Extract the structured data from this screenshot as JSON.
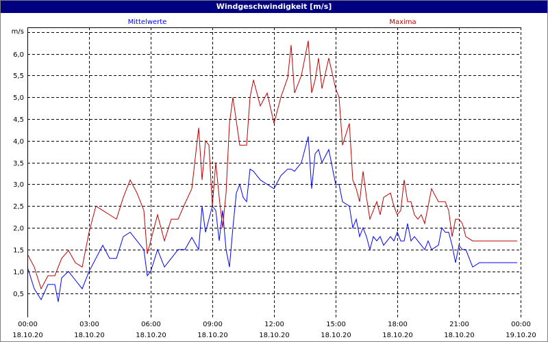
{
  "chart_data": {
    "type": "line",
    "title": "Windgeschwindigkeit [m/s]",
    "ylabel": "m/s",
    "xlabel": "",
    "ylim": [
      0,
      6.6
    ],
    "xlim_minutes": [
      0,
      1440
    ],
    "grid": true,
    "y_ticks": [
      {
        "value": 0.5,
        "label": "0,5"
      },
      {
        "value": 1.0,
        "label": "1,0"
      },
      {
        "value": 1.5,
        "label": "1,5"
      },
      {
        "value": 2.0,
        "label": "2,0"
      },
      {
        "value": 2.5,
        "label": "2,5"
      },
      {
        "value": 3.0,
        "label": "3,0"
      },
      {
        "value": 3.5,
        "label": "3,5"
      },
      {
        "value": 4.0,
        "label": "4,0"
      },
      {
        "value": 4.5,
        "label": "4,5"
      },
      {
        "value": 5.0,
        "label": "5,0"
      },
      {
        "value": 5.5,
        "label": "5,5"
      },
      {
        "value": 6.0,
        "label": "6,0"
      }
    ],
    "x_ticks": [
      {
        "minutes": 0,
        "time": "00:00",
        "date": "18.10.20"
      },
      {
        "minutes": 180,
        "time": "03:00",
        "date": "18.10.20"
      },
      {
        "minutes": 360,
        "time": "06:00",
        "date": "18.10.20"
      },
      {
        "minutes": 540,
        "time": "09:00",
        "date": "18.10.20"
      },
      {
        "minutes": 720,
        "time": "12:00",
        "date": "18.10.20"
      },
      {
        "minutes": 900,
        "time": "15:00",
        "date": "18.10.20"
      },
      {
        "minutes": 1080,
        "time": "18:00",
        "date": "18.10.20"
      },
      {
        "minutes": 1260,
        "time": "21:00",
        "date": "18.10.20"
      },
      {
        "minutes": 1440,
        "time": "00:00",
        "date": "19.10.20"
      }
    ],
    "series": [
      {
        "name": "Mittelwerte",
        "color": "#0000ff",
        "x_minutes": [
          0,
          20,
          40,
          60,
          80,
          90,
          100,
          120,
          140,
          160,
          180,
          200,
          220,
          240,
          260,
          280,
          300,
          320,
          340,
          350,
          360,
          380,
          400,
          420,
          440,
          460,
          480,
          500,
          510,
          520,
          540,
          550,
          560,
          570,
          580,
          590,
          600,
          610,
          620,
          630,
          640,
          650,
          660,
          680,
          700,
          720,
          740,
          760,
          770,
          780,
          800,
          820,
          830,
          840,
          850,
          860,
          880,
          900,
          910,
          920,
          940,
          950,
          960,
          970,
          980,
          990,
          1000,
          1010,
          1020,
          1030,
          1040,
          1060,
          1070,
          1080,
          1090,
          1100,
          1110,
          1120,
          1130,
          1140,
          1150,
          1160,
          1170,
          1180,
          1200,
          1210,
          1220,
          1230,
          1240,
          1250,
          1260,
          1270,
          1280,
          1300,
          1320,
          1330,
          1340,
          1350,
          1360,
          1380,
          1390,
          1400,
          1410,
          1420,
          1430
        ],
        "values": [
          1.1,
          0.6,
          0.35,
          0.7,
          0.7,
          0.3,
          0.85,
          1.0,
          0.8,
          0.6,
          1.0,
          1.3,
          1.6,
          1.3,
          1.3,
          1.8,
          1.9,
          1.7,
          1.5,
          0.9,
          1.0,
          1.5,
          1.1,
          1.3,
          1.5,
          1.5,
          1.78,
          1.5,
          2.5,
          1.9,
          2.5,
          2.4,
          1.7,
          2.4,
          1.5,
          1.1,
          2.0,
          2.8,
          3.0,
          2.7,
          2.6,
          3.35,
          3.3,
          3.1,
          3.0,
          2.9,
          3.2,
          3.35,
          3.35,
          3.3,
          3.5,
          4.1,
          2.9,
          3.7,
          3.8,
          3.5,
          3.8,
          3.0,
          3.0,
          2.6,
          2.5,
          2.0,
          2.2,
          1.8,
          2.0,
          1.8,
          1.5,
          1.8,
          1.7,
          1.8,
          1.6,
          1.8,
          1.7,
          1.9,
          1.7,
          1.7,
          2.1,
          1.7,
          1.8,
          1.7,
          1.6,
          1.5,
          1.7,
          1.5,
          1.6,
          2.0,
          1.9,
          1.9,
          1.6,
          1.2,
          1.6,
          1.5,
          1.5,
          1.1,
          1.2,
          1.2,
          1.2,
          1.2,
          1.2,
          1.2,
          1.2,
          1.2,
          1.2,
          1.2,
          1.2
        ]
      },
      {
        "name": "Maxima",
        "color": "#c00000",
        "x_minutes": [
          0,
          20,
          40,
          60,
          80,
          100,
          120,
          140,
          160,
          180,
          200,
          220,
          240,
          260,
          280,
          300,
          320,
          340,
          350,
          360,
          380,
          400,
          420,
          440,
          460,
          480,
          500,
          510,
          520,
          530,
          540,
          550,
          560,
          570,
          580,
          590,
          600,
          620,
          640,
          650,
          660,
          680,
          700,
          720,
          740,
          760,
          770,
          780,
          800,
          820,
          830,
          840,
          850,
          860,
          880,
          900,
          910,
          920,
          940,
          950,
          960,
          970,
          980,
          990,
          1000,
          1010,
          1020,
          1030,
          1040,
          1060,
          1070,
          1080,
          1090,
          1100,
          1110,
          1120,
          1130,
          1140,
          1150,
          1160,
          1170,
          1180,
          1200,
          1210,
          1220,
          1230,
          1240,
          1250,
          1260,
          1270,
          1280,
          1300,
          1320,
          1330,
          1340,
          1350,
          1360,
          1380,
          1390,
          1400,
          1410,
          1420,
          1430
        ],
        "values": [
          1.4,
          1.1,
          0.6,
          0.9,
          0.9,
          1.3,
          1.48,
          1.2,
          1.1,
          1.9,
          2.5,
          2.4,
          2.3,
          2.2,
          2.7,
          3.1,
          2.8,
          2.4,
          1.4,
          1.7,
          2.3,
          1.7,
          2.2,
          2.2,
          2.56,
          2.9,
          4.3,
          3.1,
          4.0,
          3.9,
          2.5,
          3.5,
          2.7,
          2.0,
          2.8,
          4.4,
          5.0,
          3.9,
          3.9,
          5.0,
          5.4,
          4.8,
          5.1,
          4.4,
          5.0,
          5.45,
          6.2,
          5.1,
          5.5,
          6.3,
          5.1,
          5.4,
          5.9,
          5.2,
          5.9,
          5.2,
          5.0,
          3.9,
          4.4,
          3.1,
          2.9,
          2.6,
          3.3,
          2.7,
          2.2,
          2.4,
          2.6,
          2.3,
          2.7,
          2.8,
          2.5,
          2.3,
          2.4,
          3.1,
          2.6,
          2.6,
          2.3,
          2.2,
          2.3,
          2.1,
          2.5,
          2.9,
          2.6,
          2.6,
          2.6,
          2.4,
          1.8,
          2.2,
          2.2,
          2.1,
          1.8,
          1.7,
          1.7,
          1.7,
          1.7,
          1.7,
          1.7,
          1.7,
          1.7,
          1.7,
          1.7,
          1.7,
          1.7
        ]
      }
    ]
  }
}
